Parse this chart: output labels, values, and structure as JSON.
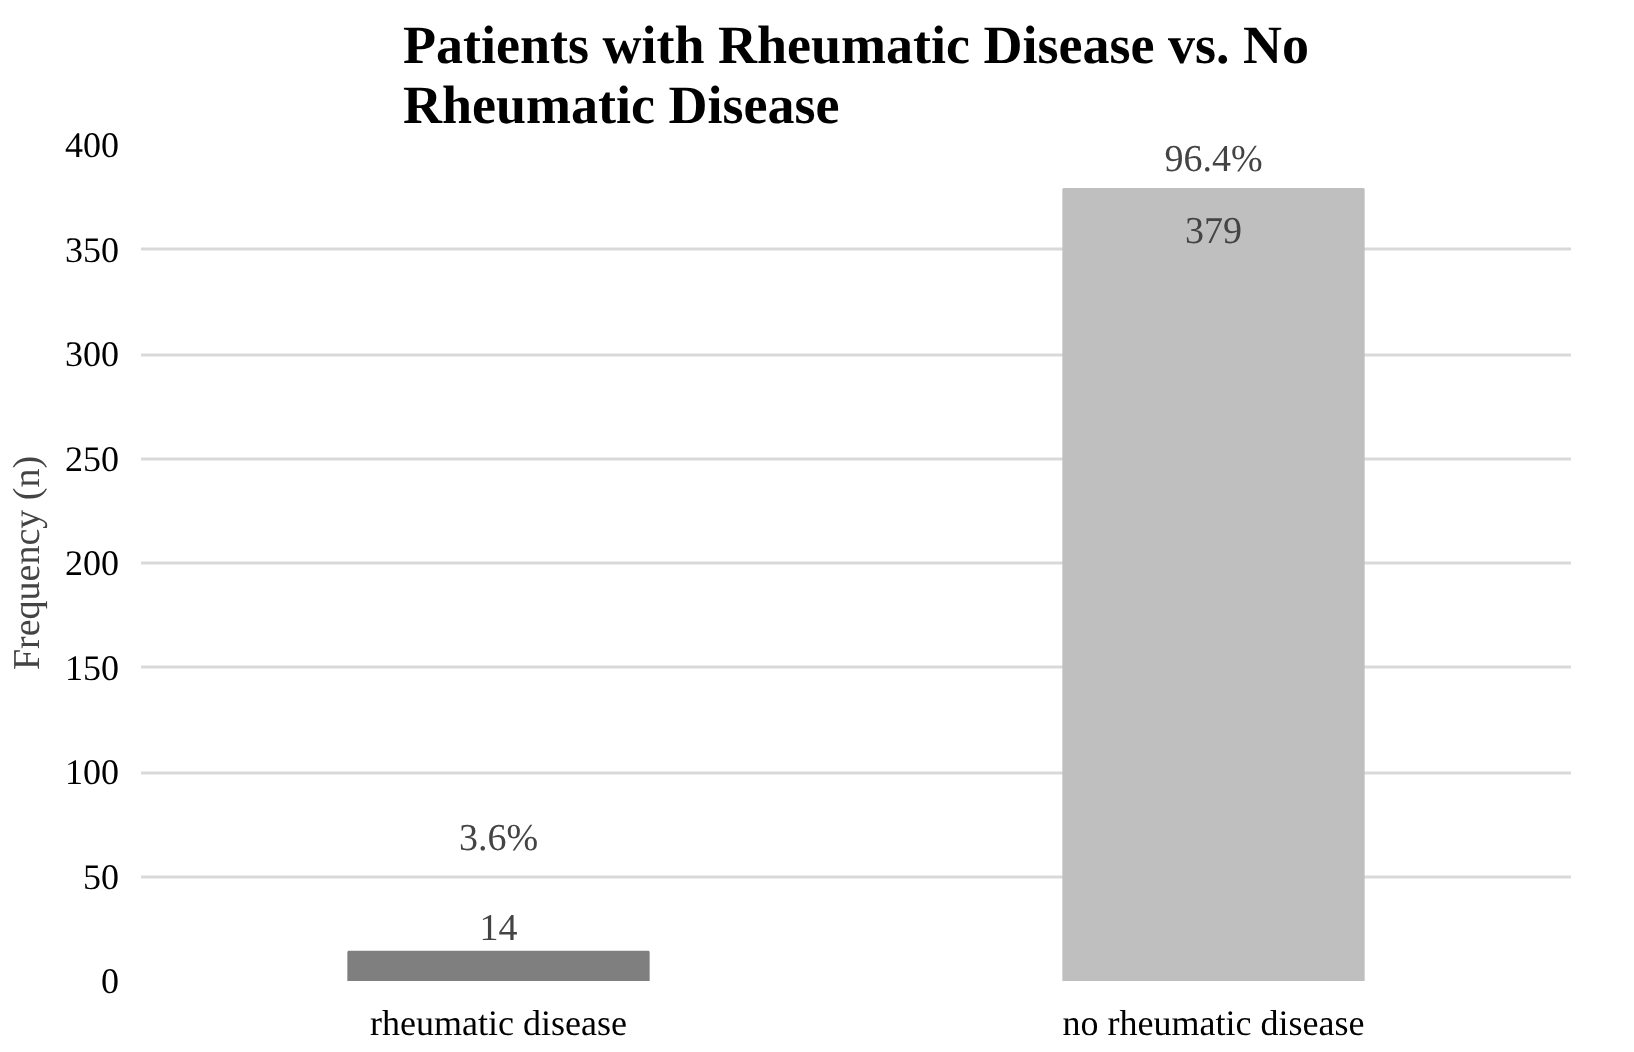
{
  "chart_data": {
    "type": "bar",
    "title": "Patients with Rheumatic Disease vs. No Rheumatic Disease",
    "ylabel": "Frequency (n)",
    "categories": [
      "rheumatic disease",
      "no rheumatic disease"
    ],
    "values": [
      14,
      379
    ],
    "colors": [
      "#7f7f7f",
      "#bfbfbf"
    ],
    "data_labels": true,
    "annotations": [
      {
        "text": "3.6%",
        "x": "rheumatic disease",
        "y": 14
      },
      {
        "text": "96.4%",
        "x": "no rheumatic disease",
        "y": 379
      }
    ],
    "ylim": [
      0,
      400
    ],
    "yticks": [
      0,
      50,
      100,
      150,
      200,
      250,
      300,
      350,
      400
    ],
    "grid": "y"
  }
}
